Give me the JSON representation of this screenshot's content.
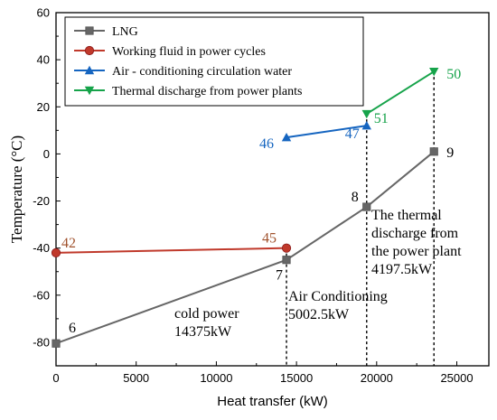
{
  "chart_data": {
    "type": "line",
    "xlabel": "Heat transfer (kW)",
    "ylabel": "Temperature (°C)",
    "xlim": [
      0,
      27000
    ],
    "ylim": [
      -90,
      60
    ],
    "xticks": [
      0,
      5000,
      10000,
      15000,
      20000,
      25000
    ],
    "yticks": [
      -80,
      -60,
      -40,
      -20,
      0,
      20,
      40,
      60
    ],
    "grid": false,
    "legend_position": "top-left",
    "series": [
      {
        "name": "LNG",
        "color": "#666666",
        "marker": "square",
        "points": [
          [
            0,
            -80.5
          ],
          [
            14375,
            -45
          ],
          [
            19377.5,
            -22.5
          ],
          [
            23575,
            1
          ]
        ]
      },
      {
        "name": "Working fluid in power cycles",
        "color": "#c0392b",
        "marker": "circle",
        "points": [
          [
            0,
            -42
          ],
          [
            14375,
            -40
          ]
        ]
      },
      {
        "name": "Air - conditioning circulation water",
        "color": "#1565c0",
        "marker": "triangle-up",
        "points": [
          [
            14375,
            7
          ],
          [
            19377.5,
            12
          ]
        ]
      },
      {
        "name": "Thermal discharge from power plants",
        "color": "#16a34a",
        "marker": "triangle-down",
        "points": [
          [
            19377.5,
            17
          ],
          [
            23575,
            35
          ]
        ]
      }
    ],
    "vlines": [
      14375,
      19377.5,
      23575
    ],
    "point_labels": [
      {
        "text": "6",
        "x": 0,
        "y": -80.5,
        "color": "#000000"
      },
      {
        "text": "7",
        "x": 14375,
        "y": -45,
        "color": "#000000"
      },
      {
        "text": "8",
        "x": 19377.5,
        "y": -22.5,
        "color": "#000000"
      },
      {
        "text": "9",
        "x": 23575,
        "y": 1,
        "color": "#000000"
      },
      {
        "text": "42",
        "x": 0,
        "y": -42,
        "color": "#a0522d"
      },
      {
        "text": "45",
        "x": 14375,
        "y": -40,
        "color": "#a0522d"
      },
      {
        "text": "46",
        "x": 14375,
        "y": 7,
        "color": "#1565c0"
      },
      {
        "text": "47",
        "x": 19377.5,
        "y": 12,
        "color": "#1565c0"
      },
      {
        "text": "51",
        "x": 19377.5,
        "y": 17,
        "color": "#16a34a"
      },
      {
        "text": "50",
        "x": 23575,
        "y": 35,
        "color": "#16a34a"
      }
    ],
    "annotations": [
      {
        "lines": [
          "cold power",
          "14375kW"
        ]
      },
      {
        "lines": [
          "Air Conditioning",
          "5002.5kW"
        ]
      },
      {
        "lines": [
          "The thermal",
          "discharge from",
          " the power plant",
          "4197.5kW"
        ]
      }
    ]
  }
}
